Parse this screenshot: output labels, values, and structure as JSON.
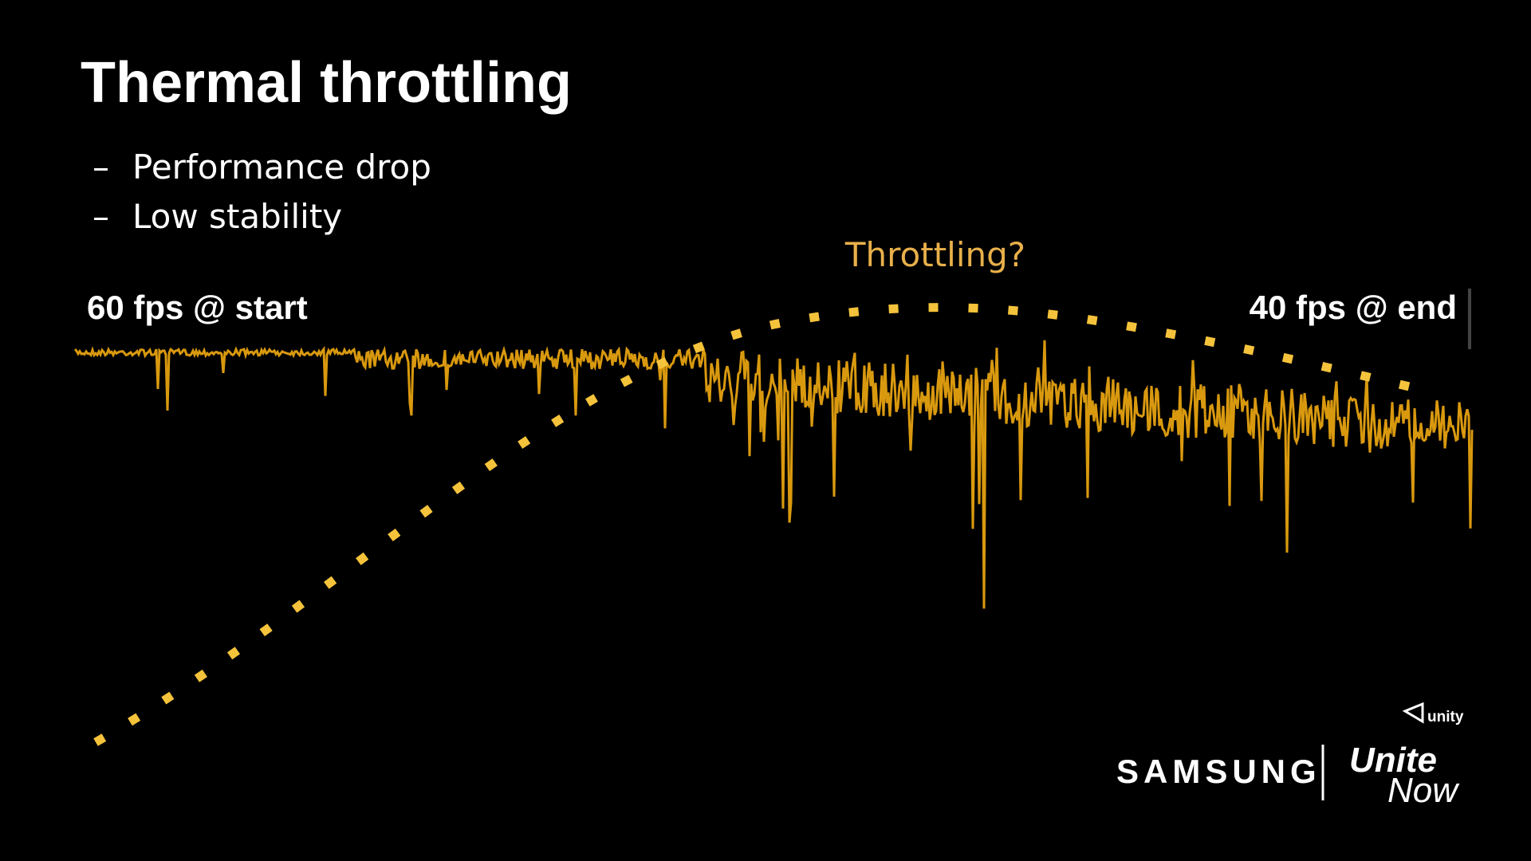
{
  "title": "Thermal throttling",
  "bullets": [
    "Performance drop",
    "Low stability"
  ],
  "annotation": "Throttling?",
  "start_label": "60 fps @ start",
  "end_label": "40 fps @ end",
  "logos": {
    "samsung": "SAMSUNG",
    "unite": "Unite",
    "now": "Now",
    "unity": "unity"
  }
}
